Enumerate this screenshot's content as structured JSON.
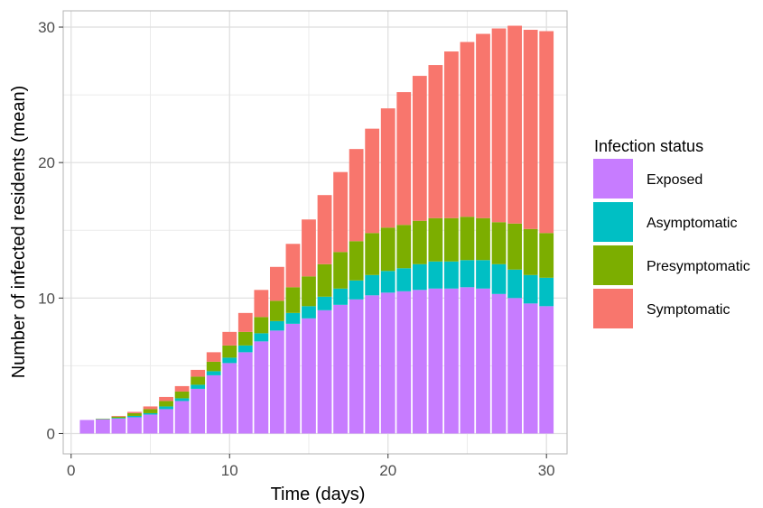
{
  "chart_data": {
    "type": "bar",
    "stacked": true,
    "xlabel": "Time (days)",
    "ylabel": "Number of infected residents (mean)",
    "xlim": [
      -0.5,
      31.3
    ],
    "ylim": [
      -1.5,
      31.2
    ],
    "xticks": [
      0,
      10,
      20,
      30
    ],
    "yticks": [
      0,
      10,
      20,
      30
    ],
    "grid": true,
    "legend": {
      "title": "Infection status",
      "position": "right"
    },
    "x": [
      1,
      2,
      3,
      4,
      5,
      6,
      7,
      8,
      9,
      10,
      11,
      12,
      13,
      14,
      15,
      16,
      17,
      18,
      19,
      20,
      21,
      22,
      23,
      24,
      25,
      26,
      27,
      28,
      29,
      30
    ],
    "series": [
      {
        "name": "Exposed",
        "color": "#C77CFF",
        "values": [
          1.0,
          1.05,
          1.1,
          1.2,
          1.4,
          1.8,
          2.4,
          3.3,
          4.3,
          5.2,
          6.0,
          6.8,
          7.6,
          8.1,
          8.5,
          9.1,
          9.5,
          9.9,
          10.2,
          10.4,
          10.5,
          10.6,
          10.7,
          10.7,
          10.8,
          10.7,
          10.3,
          10.0,
          9.6,
          9.4
        ]
      },
      {
        "name": "Asymptomatic",
        "color": "#00BFC4",
        "values": [
          0.0,
          0.02,
          0.05,
          0.1,
          0.1,
          0.2,
          0.2,
          0.3,
          0.3,
          0.4,
          0.5,
          0.6,
          0.7,
          0.8,
          0.9,
          1.0,
          1.2,
          1.4,
          1.5,
          1.6,
          1.7,
          1.9,
          2.0,
          2.0,
          2.0,
          2.1,
          2.2,
          2.1,
          2.1,
          2.1
        ]
      },
      {
        "name": "Presymptomatic",
        "color": "#7CAE00",
        "values": [
          0.0,
          0.03,
          0.1,
          0.2,
          0.3,
          0.4,
          0.5,
          0.6,
          0.7,
          0.9,
          1.0,
          1.2,
          1.5,
          1.9,
          2.2,
          2.4,
          2.7,
          2.9,
          3.1,
          3.2,
          3.2,
          3.2,
          3.2,
          3.2,
          3.2,
          3.1,
          3.1,
          3.4,
          3.4,
          3.3
        ]
      },
      {
        "name": "Symptomatic",
        "color": "#F8766D",
        "values": [
          0.0,
          0.0,
          0.05,
          0.1,
          0.2,
          0.3,
          0.4,
          0.5,
          0.7,
          1.0,
          1.4,
          2.0,
          2.5,
          3.2,
          4.2,
          5.1,
          5.9,
          6.8,
          7.7,
          8.8,
          9.8,
          10.7,
          11.3,
          12.3,
          12.9,
          13.6,
          14.3,
          14.6,
          14.7,
          14.9
        ]
      }
    ]
  }
}
